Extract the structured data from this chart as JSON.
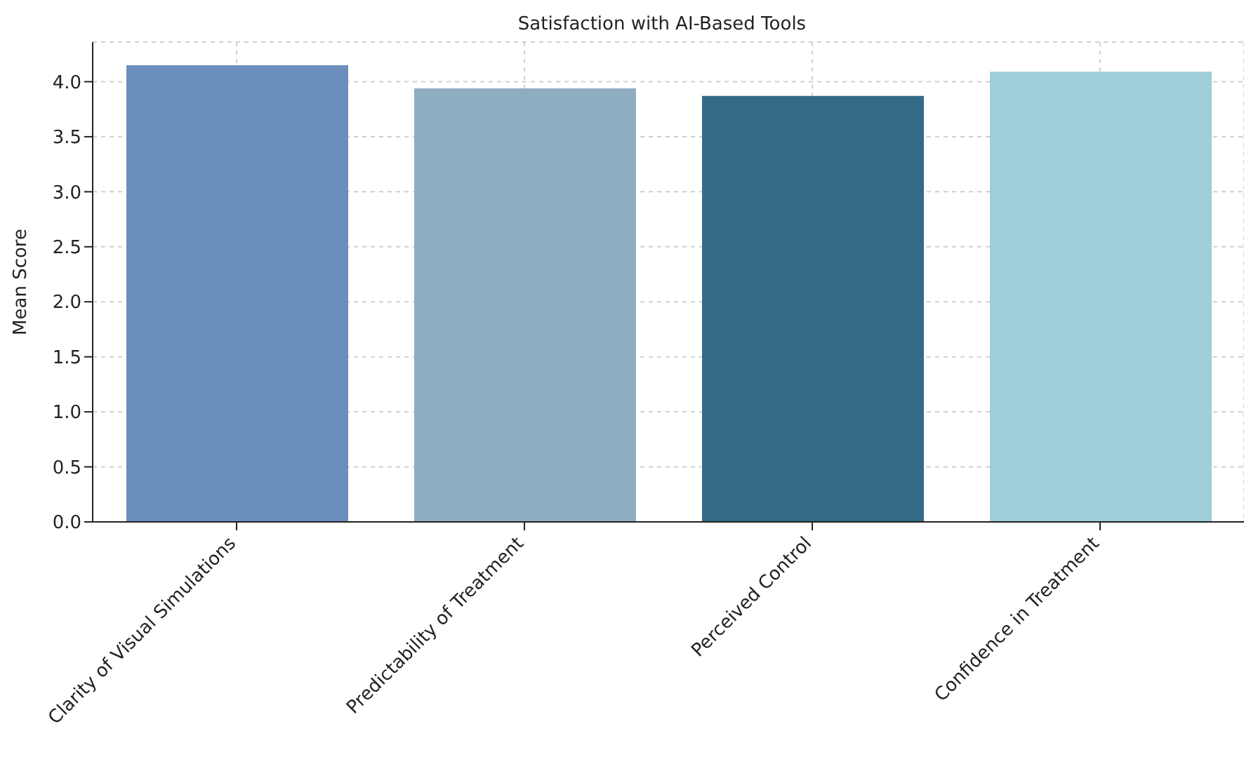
{
  "chart_data": {
    "type": "bar",
    "title": "Satisfaction with AI-Based Tools",
    "ylabel": "Mean Score",
    "categories": [
      "Clarity of Visual Simulations",
      "Predictability of Treatment",
      "Perceived Control",
      "Confidence in Treatment"
    ],
    "values": [
      4.15,
      3.94,
      3.87,
      4.09
    ],
    "colors": [
      "#6a8fbd",
      "#8fadc1",
      "#346a85",
      "#9fcdd8"
    ],
    "ylim": [
      0,
      4.36
    ],
    "yticks": [
      {
        "value": 0,
        "label": "0.0"
      },
      0.5,
      {
        "value": 1,
        "label": "1.0"
      },
      1.5,
      {
        "value": 2,
        "label": "2.0"
      },
      2.5,
      {
        "value": 3,
        "label": "3.0"
      },
      3.5,
      {
        "value": 4,
        "label": "4.0"
      }
    ],
    "grid": true
  }
}
